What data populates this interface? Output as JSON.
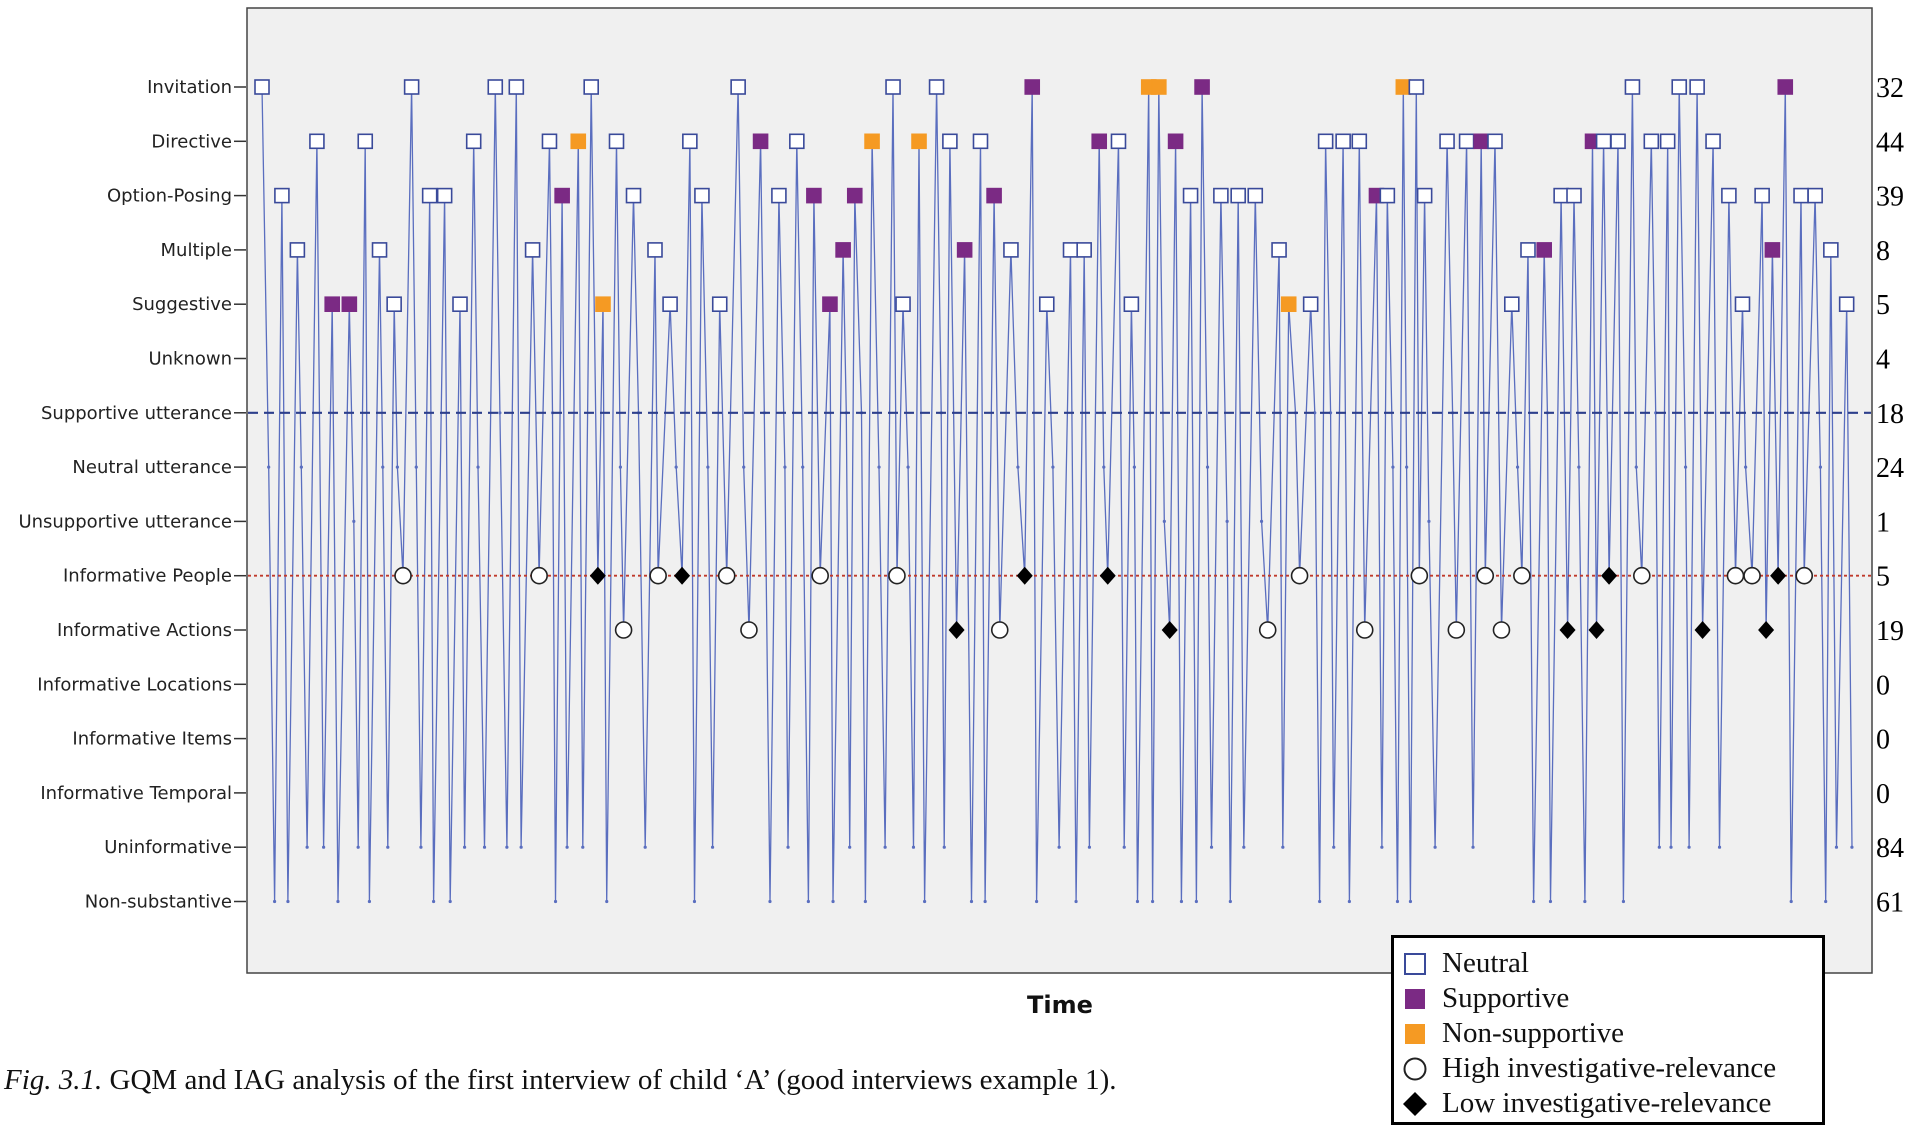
{
  "chart_data": {
    "type": "line",
    "xlabel": "Time",
    "ylabel": "",
    "categories": [
      "Invitation",
      "Directive",
      "Option-Posing",
      "Multiple",
      "Suggestive",
      "Unknown",
      "Supportive utterance",
      "Neutral utterance",
      "Unsupportive utterance",
      "Informative People",
      "Informative Actions",
      "Informative Locations",
      "Informative Items",
      "Informative Temporal",
      "Uninformative",
      "Non-substantive"
    ],
    "counts": [
      32,
      44,
      39,
      8,
      5,
      4,
      18,
      24,
      1,
      5,
      19,
      0,
      0,
      0,
      84,
      61
    ],
    "reference_lines": [
      {
        "category": "Supportive utterance",
        "style": "dashed",
        "color": "#2d3f8c"
      },
      {
        "category": "Informative People",
        "style": "dotted",
        "color": "#c0392b"
      }
    ],
    "grid": false,
    "colors": {
      "line": "#5a6ebf",
      "neutral": "#ffffff",
      "neutral_stroke": "#3a4a9a",
      "supportive": "#7b2a84",
      "nonsupportive": "#f59a23",
      "background": "#f0f0f0"
    },
    "legend": {
      "placement": "bottom-right",
      "items": [
        {
          "label": "Neutral",
          "symbol": "square-open"
        },
        {
          "label": "Supportive",
          "symbol": "square-purple"
        },
        {
          "label": "Non-supportive",
          "symbol": "square-orange"
        },
        {
          "label": "High investigative-relevance",
          "symbol": "circle-open"
        },
        {
          "label": "Low investigative-relevance",
          "symbol": "diamond-filled"
        }
      ]
    }
  },
  "caption": {
    "label": "Fig. 3.1.",
    "text": " GQM and IAG analysis of the first interview of child ‘A’ (good interviews example 1)."
  }
}
